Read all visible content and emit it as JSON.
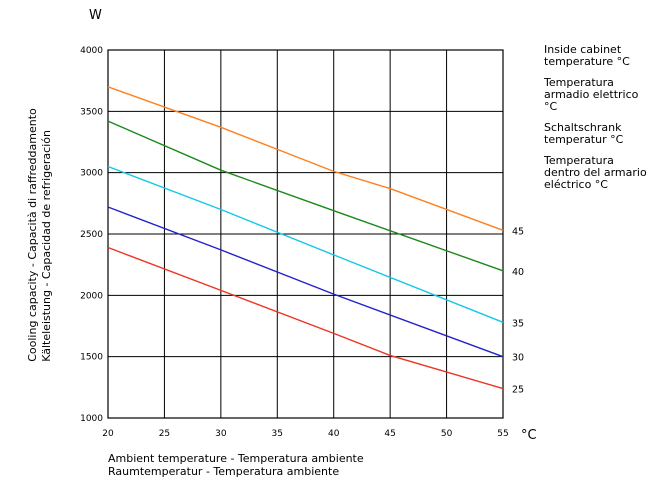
{
  "chart_data": {
    "type": "line",
    "y_unit": "W",
    "x_unit": "°C",
    "ylabel_lines": [
      "Cooling capacity - Capacità di raffreddamento",
      "Kälteleistung - Capacidad de refrigeración"
    ],
    "xlabel_lines": [
      "Ambient temperature - Temperatura ambiente",
      "Raumtemperatur - Temperatura ambiente"
    ],
    "legend_title": [
      "Inside cabinet temperature °C",
      "Temperatura armadio elettrico °C",
      "Schaltschrank temperatur °C",
      "Temperatura dentro del armario eléctrico °C"
    ],
    "xlim": [
      20,
      55
    ],
    "ylim": [
      1000,
      4000
    ],
    "x_ticks": [
      20,
      25,
      30,
      35,
      40,
      45,
      50,
      55
    ],
    "y_ticks": [
      1000,
      1500,
      2000,
      2500,
      3000,
      3500,
      4000
    ],
    "grid": true,
    "series": [
      {
        "name": "45",
        "color": "#ff7f1e",
        "points": [
          [
            20,
            3700
          ],
          [
            30,
            3370
          ],
          [
            40,
            3010
          ],
          [
            45,
            2870
          ],
          [
            55,
            2530
          ]
        ]
      },
      {
        "name": "40",
        "color": "#1b8a1b",
        "points": [
          [
            20,
            3420
          ],
          [
            30,
            3020
          ],
          [
            40,
            2690
          ],
          [
            55,
            2200
          ]
        ]
      },
      {
        "name": "35",
        "color": "#12c8e6",
        "points": [
          [
            20,
            3050
          ],
          [
            30,
            2700
          ],
          [
            40,
            2330
          ],
          [
            55,
            1780
          ]
        ]
      },
      {
        "name": "30",
        "color": "#2222cc",
        "points": [
          [
            20,
            2720
          ],
          [
            30,
            2370
          ],
          [
            40,
            2010
          ],
          [
            55,
            1500
          ]
        ]
      },
      {
        "name": "25",
        "color": "#ee3322",
        "points": [
          [
            20,
            2390
          ],
          [
            30,
            2040
          ],
          [
            40,
            1690
          ],
          [
            45,
            1510
          ],
          [
            55,
            1240
          ]
        ]
      }
    ]
  }
}
